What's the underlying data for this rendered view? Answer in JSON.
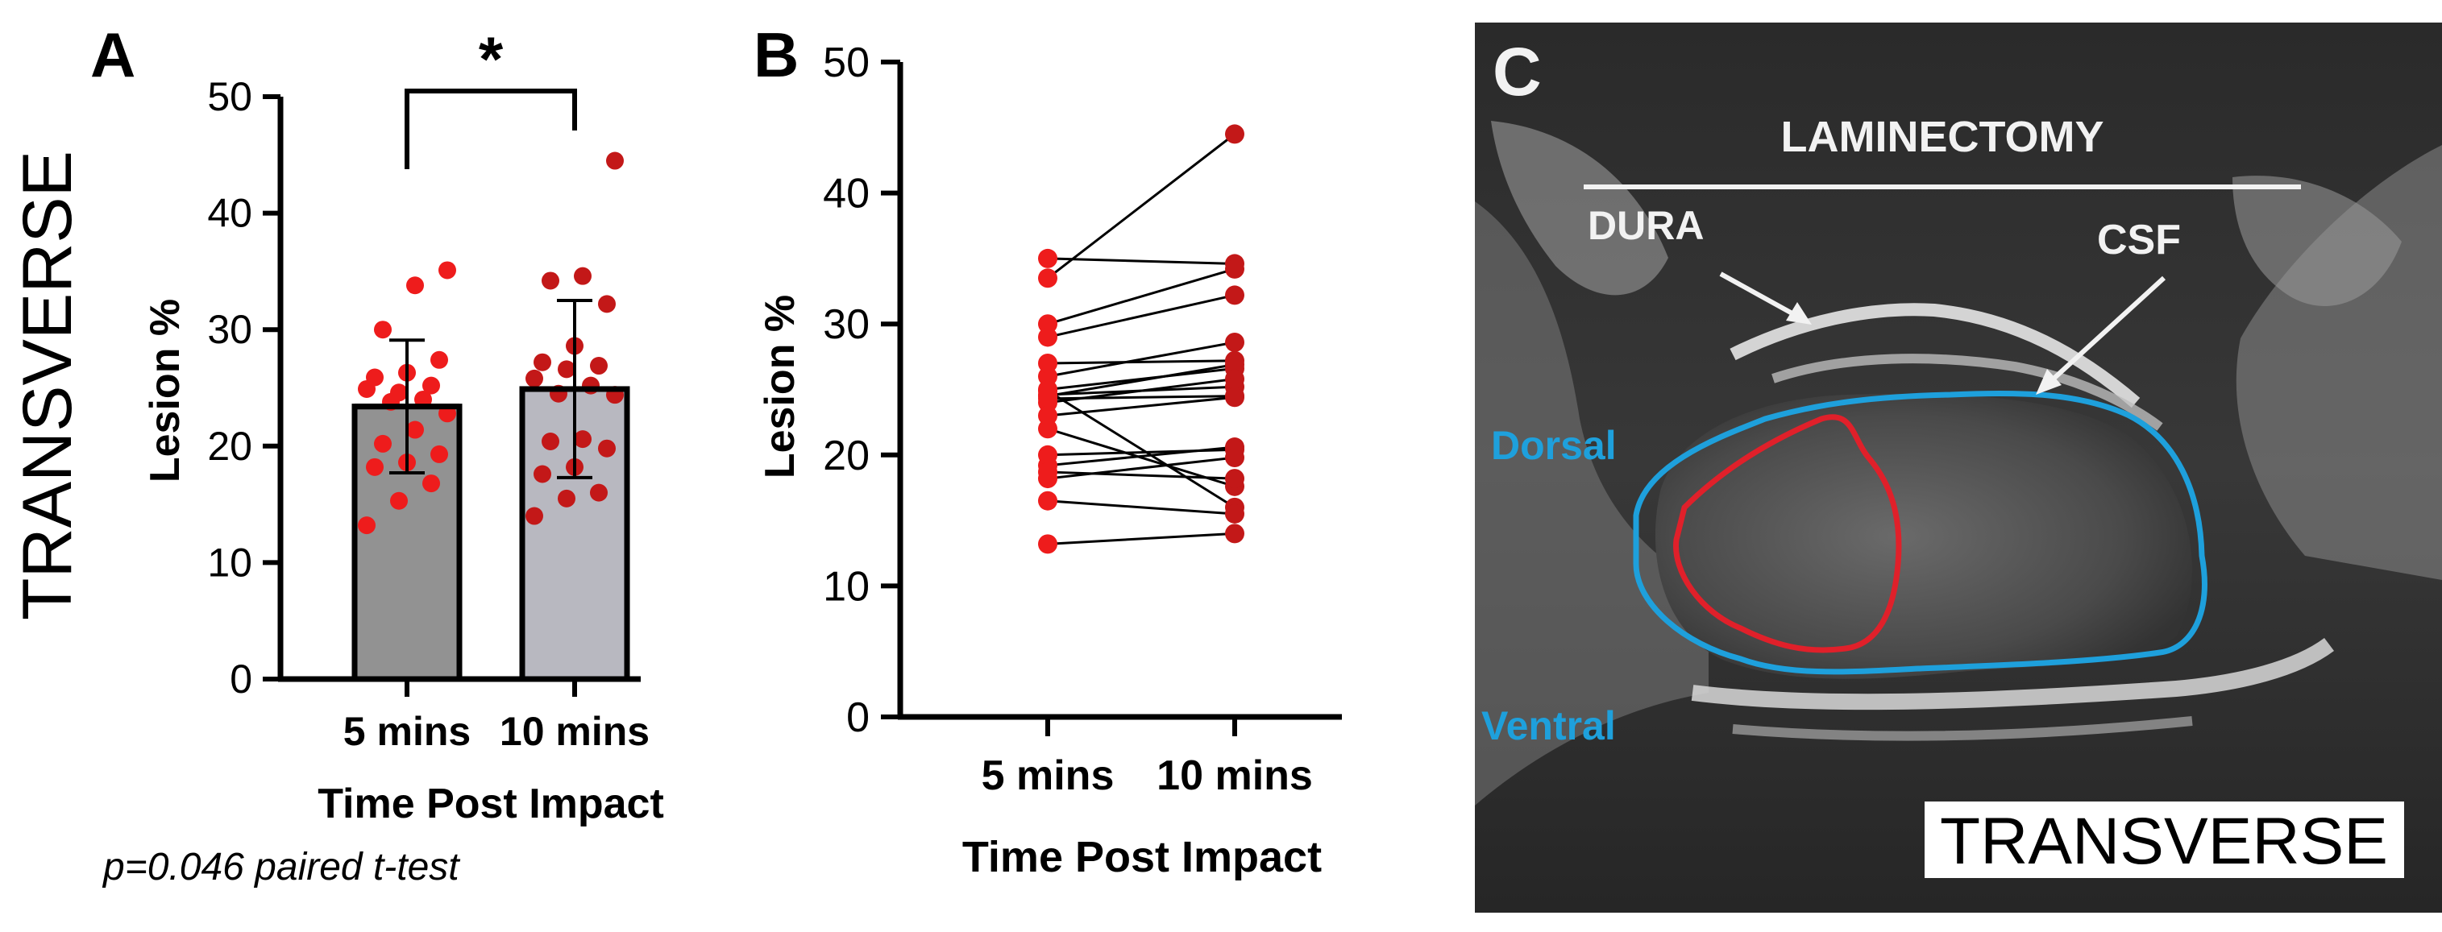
{
  "side_label": "TRANSVERSE",
  "panel_a": {
    "label": "A",
    "significance": "*",
    "footnote": "p=0.046 paired t-test"
  },
  "panel_b": {
    "label": "B"
  },
  "panel_c": {
    "label": "C",
    "annotations": {
      "laminectomy": "LAMINECTOMY",
      "dura": "DURA",
      "csf": "CSF",
      "dorsal": "Dorsal",
      "ventral": "Ventral",
      "view": "TRANSVERSE"
    },
    "colors": {
      "cord_outline": "#1ea0dc",
      "lesion_outline": "#e0202a",
      "label_blue": "#1ea0dc"
    }
  },
  "chart_data": [
    {
      "type": "bar",
      "panel": "A",
      "title": "",
      "categories": [
        "5 mins",
        "10 mins"
      ],
      "values": [
        23.4,
        24.9
      ],
      "error_sd": [
        5.7,
        7.6
      ],
      "points": [
        [
          13.2,
          15.3,
          16.8,
          18.2,
          18.6,
          19.3,
          20.2,
          21.4,
          22.8,
          23.8,
          24.0,
          24.9,
          24.6,
          25.2,
          25.9,
          26.3,
          27.4,
          30.0,
          33.8,
          35.1
        ],
        [
          14.0,
          15.5,
          16.0,
          17.6,
          18.2,
          19.8,
          20.4,
          20.6,
          24.4,
          24.5,
          25.2,
          25.8,
          26.6,
          26.9,
          27.2,
          28.6,
          32.2,
          34.2,
          34.6,
          44.5
        ]
      ],
      "xlabel": "Time Post Impact",
      "ylabel": "Lesion %",
      "ylim": [
        0,
        50
      ],
      "yticks": [
        0,
        10,
        20,
        30,
        40,
        50
      ],
      "colors": {
        "bar_5": "#929292",
        "bar_10": "#b8b8c0",
        "points_5": "#ee1c1c",
        "points_10": "#c31818"
      }
    },
    {
      "type": "line",
      "panel": "B",
      "title": "",
      "categories": [
        "5 mins",
        "10 mins"
      ],
      "pairs": [
        [
          33.5,
          44.5
        ],
        [
          35.0,
          34.6
        ],
        [
          30.0,
          34.2
        ],
        [
          29.0,
          32.2
        ],
        [
          26.0,
          28.6
        ],
        [
          27.0,
          27.2
        ],
        [
          24.5,
          26.9
        ],
        [
          25.0,
          26.6
        ],
        [
          24.0,
          25.8
        ],
        [
          24.6,
          25.2
        ],
        [
          24.3,
          24.5
        ],
        [
          23.0,
          24.4
        ],
        [
          19.2,
          20.6
        ],
        [
          20.0,
          20.4
        ],
        [
          18.2,
          19.8
        ],
        [
          22.0,
          17.6
        ],
        [
          24.9,
          16.0
        ],
        [
          16.5,
          15.5
        ],
        [
          13.2,
          14.0
        ],
        [
          18.7,
          18.2
        ]
      ],
      "xlabel": "Time Post Impact",
      "ylabel": "Lesion %",
      "ylim": [
        0,
        50
      ],
      "yticks": [
        0,
        10,
        20,
        30,
        40,
        50
      ],
      "colors": {
        "points_5": "#ee1c1c",
        "points_10": "#c31818",
        "lines": "#000000"
      }
    }
  ]
}
